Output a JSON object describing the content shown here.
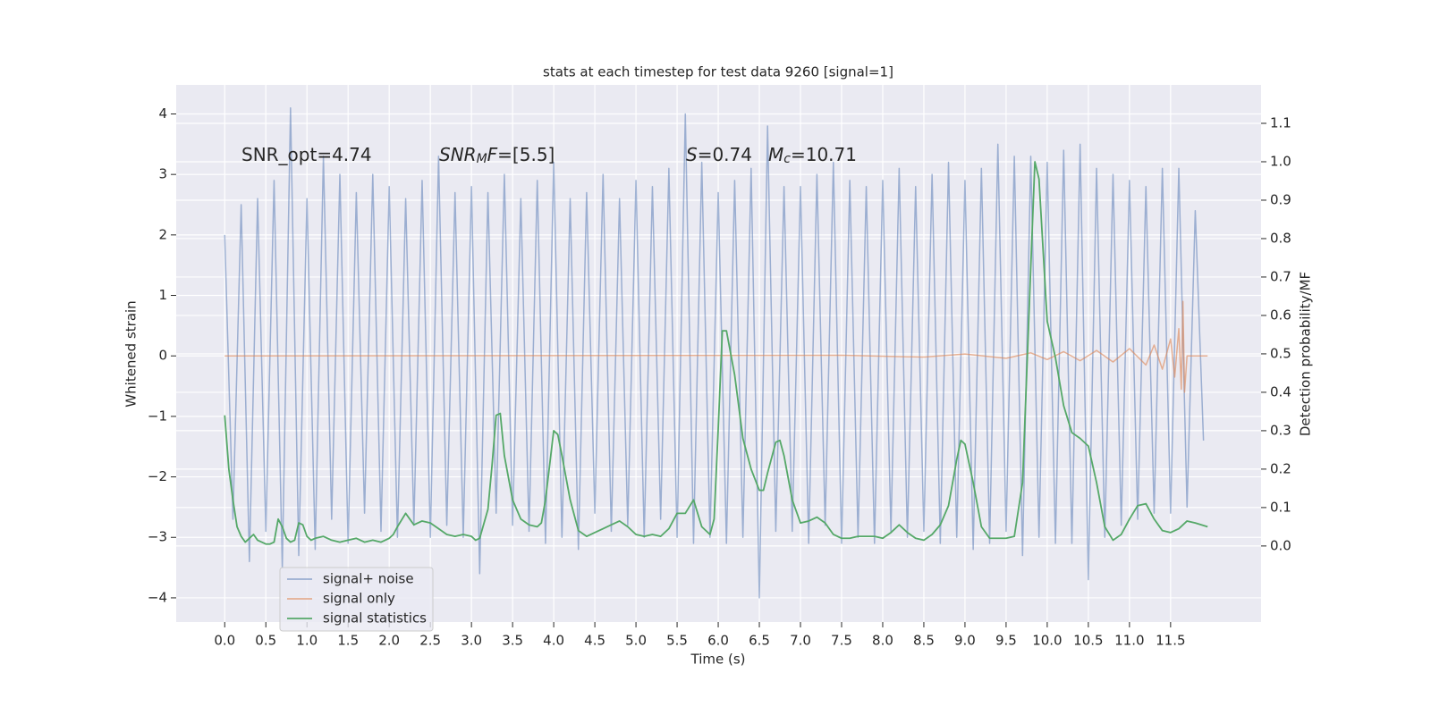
{
  "chart_data": {
    "type": "line",
    "title": "stats at each timestep for test data 9260 [signal=1]",
    "xlabel": "Time (s)",
    "ylabel": "Whitened strain",
    "y2label": "Detection probability/MF",
    "xlim": [
      -0.59,
      12.6
    ],
    "ylim": [
      -4.4,
      4.48
    ],
    "y2lim": [
      -0.198,
      1.2
    ],
    "xticks": [
      {
        "value": 0,
        "label": "0.0"
      },
      0.5,
      {
        "value": 1,
        "label": "1.0"
      },
      1.5,
      {
        "value": 2,
        "label": "2.0"
      },
      2.5,
      {
        "value": 3,
        "label": "3.0"
      },
      3.5,
      {
        "value": 4,
        "label": "4.0"
      },
      4.5,
      {
        "value": 5,
        "label": "5.0"
      },
      5.5,
      {
        "value": 6,
        "label": "6.0"
      },
      6.5,
      {
        "value": 7,
        "label": "7.0"
      },
      7.5,
      {
        "value": 8,
        "label": "8.0"
      },
      8.5,
      {
        "value": 9,
        "label": "9.0"
      },
      9.5,
      {
        "value": 10,
        "label": "10.0"
      },
      10.5,
      {
        "value": 11,
        "label": "11.0"
      },
      11.5
    ],
    "yticks": [
      {
        "value": -4,
        "label": "−4"
      },
      {
        "value": -3,
        "label": "−3"
      },
      {
        "value": -2,
        "label": "−2"
      },
      {
        "value": -1,
        "label": "−1"
      },
      0,
      1,
      2,
      3,
      4
    ],
    "y2ticks": [
      {
        "value": 0,
        "label": "0.0"
      },
      0.1,
      0.2,
      0.3,
      0.4,
      0.5,
      0.6,
      0.7,
      0.8,
      0.9,
      {
        "value": 1,
        "label": "1.0"
      },
      1.1
    ],
    "grid": true,
    "legend": "lower left",
    "annotations": [
      [
        {
          "text": "SNR_opt=4.74"
        }
      ],
      [
        {
          "text": "SNR",
          "style": "italic"
        },
        {
          "text": "M",
          "style": "sub"
        },
        {
          "text": "F",
          "style": "italic"
        },
        {
          "text": "=[5.5]"
        }
      ],
      [
        {
          "text": "S",
          "style": "italic"
        },
        {
          "text": "=0.74"
        }
      ],
      [
        {
          "text": "M",
          "style": "italic"
        },
        {
          "text": "c",
          "style": "sub"
        },
        {
          "text": "=10.71"
        }
      ]
    ],
    "series": [
      {
        "name": "signal+ noise",
        "color": "#4c72b0",
        "opacity": 0.5,
        "x": [
          0.0,
          0.1,
          0.2,
          0.3,
          0.4,
          0.5,
          0.6,
          0.7,
          0.8,
          0.9,
          1.0,
          1.1,
          1.2,
          1.3,
          1.4,
          1.5,
          1.6,
          1.7,
          1.8,
          1.9,
          2.0,
          2.1,
          2.2,
          2.3,
          2.4,
          2.5,
          2.6,
          2.7,
          2.8,
          2.9,
          3.0,
          3.1,
          3.2,
          3.3,
          3.4,
          3.5,
          3.6,
          3.7,
          3.8,
          3.9,
          4.0,
          4.1,
          4.2,
          4.3,
          4.4,
          4.5,
          4.6,
          4.7,
          4.8,
          4.9,
          5.0,
          5.1,
          5.2,
          5.3,
          5.4,
          5.5,
          5.6,
          5.7,
          5.8,
          5.9,
          6.0,
          6.1,
          6.2,
          6.3,
          6.4,
          6.5,
          6.6,
          6.7,
          6.8,
          6.9,
          7.0,
          7.1,
          7.2,
          7.3,
          7.4,
          7.5,
          7.6,
          7.7,
          7.8,
          7.9,
          8.0,
          8.1,
          8.2,
          8.3,
          8.4,
          8.5,
          8.6,
          8.7,
          8.8,
          8.9,
          9.0,
          9.1,
          9.2,
          9.3,
          9.4,
          9.5,
          9.6,
          9.7,
          9.8,
          9.9,
          10.0,
          10.1,
          10.2,
          10.3,
          10.4,
          10.5,
          10.6,
          10.7,
          10.8,
          10.9,
          11.0,
          11.1,
          11.2,
          11.3,
          11.4,
          11.5,
          11.6,
          11.7,
          11.8,
          11.9
        ],
        "values": [
          2.0,
          -2.7,
          2.5,
          -3.4,
          2.6,
          -2.9,
          2.9,
          -3.5,
          4.1,
          -3.3,
          2.6,
          -3.2,
          3.3,
          -2.7,
          3.0,
          -3.1,
          2.7,
          -2.6,
          3.0,
          -2.9,
          2.8,
          -3.0,
          2.6,
          -2.8,
          2.9,
          -3.0,
          3.3,
          -2.8,
          2.7,
          -3.0,
          2.8,
          -3.6,
          2.7,
          -2.6,
          3.0,
          -2.8,
          2.6,
          -2.9,
          2.9,
          -3.1,
          3.2,
          -3.0,
          2.6,
          -3.2,
          2.7,
          -2.6,
          3.0,
          -2.9,
          2.6,
          -2.8,
          2.9,
          -3.0,
          2.8,
          -2.7,
          3.1,
          -3.0,
          4.0,
          -3.1,
          3.2,
          -3.0,
          2.7,
          -3.1,
          2.9,
          -3.0,
          3.1,
          -4.0,
          3.8,
          -2.9,
          2.8,
          -2.9,
          2.8,
          -3.1,
          3.0,
          -2.8,
          3.2,
          -3.1,
          2.9,
          -3.0,
          2.8,
          -3.1,
          2.9,
          -2.9,
          3.1,
          -3.0,
          2.8,
          -2.9,
          3.0,
          -3.1,
          3.2,
          -3.0,
          2.9,
          -3.2,
          3.1,
          -3.1,
          3.5,
          -2.9,
          3.3,
          -3.3,
          3.3,
          -3.0,
          3.2,
          -3.1,
          3.4,
          -3.1,
          3.5,
          -3.7,
          3.1,
          -3.0,
          3.0,
          -2.8,
          2.9,
          -2.7,
          2.8,
          -2.6,
          3.1,
          -2.6,
          3.1,
          -2.5,
          2.4,
          -1.4
        ]
      },
      {
        "name": "signal only",
        "color": "#dd8452",
        "opacity": 0.6,
        "x": [
          0,
          7.5,
          8.5,
          9.0,
          9.5,
          9.8,
          10.0,
          10.2,
          10.4,
          10.6,
          10.8,
          11.0,
          11.2,
          11.3,
          11.4,
          11.5,
          11.55,
          11.6,
          11.63,
          11.65,
          11.67,
          11.7,
          11.95
        ],
        "values": [
          0,
          0.01,
          -0.02,
          0.03,
          -0.04,
          0.05,
          -0.06,
          0.07,
          -0.08,
          0.09,
          -0.1,
          0.12,
          -0.15,
          0.18,
          -0.22,
          0.28,
          -0.35,
          0.45,
          -0.55,
          0.9,
          -0.6,
          0,
          0
        ]
      },
      {
        "name": "signal statistics",
        "color": "#55a868",
        "opacity": 1,
        "axis": "y2",
        "x": [
          0,
          0.05,
          0.1,
          0.15,
          0.2,
          0.25,
          0.3,
          0.35,
          0.4,
          0.5,
          0.55,
          0.6,
          0.65,
          0.7,
          0.75,
          0.8,
          0.85,
          0.9,
          0.95,
          1.0,
          1.05,
          1.1,
          1.2,
          1.3,
          1.4,
          1.5,
          1.6,
          1.7,
          1.8,
          1.9,
          2.0,
          2.05,
          2.1,
          2.2,
          2.25,
          2.3,
          2.4,
          2.5,
          2.6,
          2.7,
          2.8,
          2.9,
          3.0,
          3.05,
          3.1,
          3.2,
          3.25,
          3.3,
          3.35,
          3.4,
          3.5,
          3.6,
          3.7,
          3.8,
          3.85,
          3.9,
          4.0,
          4.05,
          4.1,
          4.2,
          4.3,
          4.4,
          4.5,
          4.6,
          4.7,
          4.8,
          4.9,
          5.0,
          5.1,
          5.2,
          5.3,
          5.4,
          5.5,
          5.6,
          5.7,
          5.8,
          5.9,
          5.95,
          6.0,
          6.05,
          6.1,
          6.2,
          6.3,
          6.4,
          6.5,
          6.55,
          6.6,
          6.7,
          6.75,
          6.8,
          6.9,
          7.0,
          7.1,
          7.2,
          7.3,
          7.4,
          7.5,
          7.6,
          7.7,
          7.8,
          7.9,
          8.0,
          8.1,
          8.2,
          8.3,
          8.4,
          8.5,
          8.6,
          8.7,
          8.8,
          8.9,
          8.95,
          9.0,
          9.1,
          9.2,
          9.3,
          9.4,
          9.5,
          9.6,
          9.7,
          9.8,
          9.85,
          9.9,
          10.0,
          10.1,
          10.2,
          10.3,
          10.4,
          10.5,
          10.6,
          10.7,
          10.8,
          10.9,
          11.0,
          11.1,
          11.2,
          11.3,
          11.4,
          11.5,
          11.6,
          11.7,
          11.8,
          11.95
        ],
        "values": [
          0.34,
          0.2,
          0.12,
          0.05,
          0.025,
          0.01,
          0.02,
          0.03,
          0.015,
          0.005,
          0.005,
          0.01,
          0.07,
          0.05,
          0.02,
          0.01,
          0.015,
          0.06,
          0.055,
          0.025,
          0.015,
          0.02,
          0.025,
          0.015,
          0.01,
          0.015,
          0.02,
          0.01,
          0.015,
          0.01,
          0.02,
          0.03,
          0.05,
          0.085,
          0.07,
          0.055,
          0.065,
          0.06,
          0.045,
          0.03,
          0.025,
          0.03,
          0.025,
          0.015,
          0.02,
          0.095,
          0.21,
          0.34,
          0.345,
          0.235,
          0.12,
          0.07,
          0.055,
          0.05,
          0.06,
          0.12,
          0.3,
          0.29,
          0.235,
          0.12,
          0.04,
          0.025,
          0.035,
          0.045,
          0.055,
          0.065,
          0.05,
          0.03,
          0.025,
          0.03,
          0.025,
          0.045,
          0.085,
          0.085,
          0.12,
          0.05,
          0.03,
          0.07,
          0.305,
          0.56,
          0.56,
          0.445,
          0.28,
          0.2,
          0.145,
          0.145,
          0.19,
          0.27,
          0.275,
          0.235,
          0.12,
          0.06,
          0.065,
          0.075,
          0.06,
          0.03,
          0.02,
          0.02,
          0.025,
          0.025,
          0.025,
          0.02,
          0.035,
          0.055,
          0.035,
          0.02,
          0.015,
          0.03,
          0.055,
          0.105,
          0.225,
          0.275,
          0.265,
          0.165,
          0.05,
          0.02,
          0.02,
          0.02,
          0.025,
          0.165,
          0.725,
          1.0,
          0.955,
          0.585,
          0.49,
          0.365,
          0.295,
          0.28,
          0.26,
          0.165,
          0.05,
          0.015,
          0.03,
          0.07,
          0.105,
          0.11,
          0.07,
          0.04,
          0.035,
          0.045,
          0.065,
          0.06,
          0.05
        ]
      }
    ]
  }
}
